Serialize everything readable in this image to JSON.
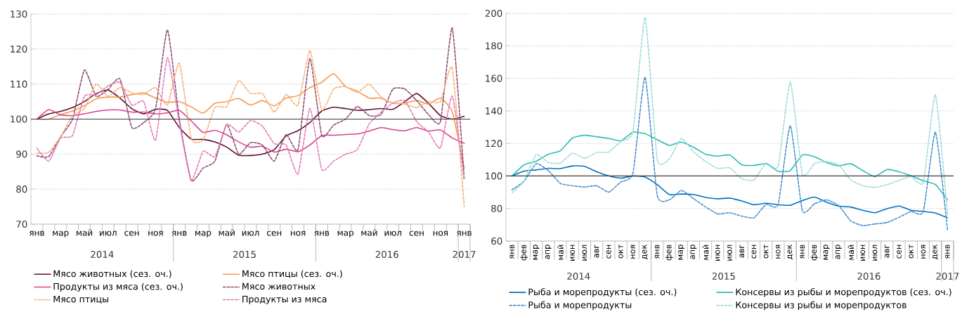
{
  "chart_data": [
    {
      "type": "line",
      "categories": [
        "янв",
        null,
        "мар",
        null,
        "май",
        null,
        "июл",
        null,
        "сен",
        null,
        "ноя",
        null,
        "янв",
        null,
        "мар",
        null,
        "май",
        null,
        "июл",
        null,
        "сен",
        null,
        "ноя",
        null,
        "янв",
        null,
        "мар",
        null,
        "май",
        null,
        "июл",
        null,
        "сен",
        null,
        "ноя",
        null,
        "янв"
      ],
      "series": [
        {
          "name": "Мясо животных (сез. оч.)",
          "color": "#5c1030",
          "line_style": "solid",
          "values": [
            100,
            101.5,
            102.2,
            103.3,
            105,
            107.3,
            108.3,
            106,
            103,
            101.5,
            102.8,
            102.5,
            97.6,
            94.3,
            94.2,
            93.5,
            92,
            89.7,
            89.6,
            90,
            91.3,
            95.2,
            96.7,
            99,
            102.3,
            103.4,
            103,
            102.5,
            102.7,
            103,
            102.8,
            105,
            107.3,
            104.5,
            101,
            100,
            100.8
          ]
        },
        {
          "name": "Мясо птицы (сез. оч.)",
          "color": "#f59a4f",
          "line_style": "solid",
          "values": [
            100,
            100,
            101.3,
            102.3,
            103.8,
            105.8,
            106.3,
            106.3,
            107,
            107.5,
            106,
            104.8,
            105,
            103.5,
            101.7,
            104.5,
            105,
            105.9,
            104,
            105.3,
            103.8,
            106,
            106.7,
            109,
            110.5,
            113,
            109.3,
            108,
            106,
            106,
            104.5,
            104.6,
            105.3,
            104.3,
            106,
            102,
            86
          ]
        },
        {
          "name": "Продукты из мяса (сез. оч.)",
          "color": "#d9408f",
          "line_style": "solid",
          "values": [
            100,
            102.7,
            101.2,
            101,
            101.5,
            102.2,
            102.6,
            102.6,
            102,
            102,
            101.5,
            101.8,
            102.5,
            99.5,
            96.2,
            96.8,
            95.5,
            93.5,
            92,
            92.2,
            90.6,
            91.4,
            90.7,
            92.6,
            95.3,
            95.4,
            95.6,
            95.8,
            96.6,
            97.6,
            97,
            96.7,
            97.6,
            96.6,
            96.9,
            94.6,
            93.1
          ]
        },
        {
          "name": "Мясо животных",
          "color": "#8e4d72",
          "line_style": "dashed",
          "values": [
            89.5,
            89.3,
            95,
            100,
            114,
            106.5,
            108.5,
            111.5,
            97.6,
            99,
            103,
            125.5,
            100,
            82.5,
            86,
            88,
            98.5,
            90,
            93.3,
            92.6,
            88,
            95.6,
            91.3,
            117.3,
            95.3,
            98.3,
            100,
            103.6,
            101,
            101.3,
            108.6,
            108.6,
            105.3,
            101.3,
            99.3,
            126,
            83
          ]
        },
        {
          "name": "Мясо птицы",
          "color": "#f7b27a",
          "line_style": "dashed",
          "values": [
            90.3,
            90.5,
            95,
            101,
            103,
            110,
            106.5,
            109,
            107.5,
            107,
            109,
            104,
            116,
            94.5,
            94,
            103.3,
            103.6,
            111,
            107.3,
            107.3,
            102,
            107,
            104,
            119.6,
            102.6,
            108.6,
            109.3,
            107.6,
            110,
            106.3,
            104.6,
            104.3,
            103.3,
            105,
            105,
            114.6,
            75
          ]
        },
        {
          "name": "Продукты из мяса",
          "color": "#e67ab8",
          "line_style": "dashed",
          "values": [
            91.7,
            88,
            94.6,
            95.3,
            106.5,
            107,
            109.5,
            110.5,
            104,
            105,
            94,
            117.5,
            99,
            82.5,
            90.8,
            89.3,
            98.5,
            96.3,
            99.6,
            98,
            93,
            92.6,
            84.3,
            103.1,
            85.6,
            88,
            90,
            91.3,
            98.6,
            102,
            104.6,
            105.3,
            99.3,
            96.3,
            91.8,
            106.6,
            82.6
          ]
        }
      ],
      "ylim": [
        70,
        130
      ],
      "yticks": [
        70,
        80,
        90,
        100,
        110,
        120,
        130
      ],
      "grid": "y",
      "legend": "bottom",
      "ref_lines": [
        {
          "axis": "y",
          "value": 100,
          "color": "#3a3a3a"
        }
      ],
      "annotations": [
        "2014",
        "2015",
        "2016",
        "2017"
      ]
    },
    {
      "type": "line",
      "categories": [
        "янв",
        "фев",
        "мар",
        "апр",
        "май",
        "июн",
        "июл",
        "авг",
        "сен",
        "окт",
        "ноя",
        "дек",
        "янв",
        "фев",
        "мар",
        "апр",
        "май",
        "июн",
        "июл",
        "авг",
        "сен",
        "окт",
        "ноя",
        "дек",
        "янв",
        "фев",
        "мар",
        "апр",
        "май",
        "июн",
        "июл",
        "авг",
        "сен",
        "окт",
        "ноя",
        "дек",
        "янв"
      ],
      "series": [
        {
          "name": "Рыба и морепродукты (сез. оч.)",
          "color": "#0070c0",
          "line_style": "solid",
          "values": [
            100,
            103,
            103.7,
            104.7,
            104.5,
            106.2,
            105.9,
            102.6,
            100.1,
            98.7,
            100,
            99.3,
            94.7,
            88.6,
            88.9,
            88.6,
            86.8,
            86,
            86.4,
            84.6,
            82.3,
            83.2,
            82.3,
            82,
            84.9,
            87,
            83.9,
            81.5,
            80.9,
            78.9,
            77.4,
            79.9,
            81.5,
            78.9,
            78.2,
            77.2,
            74.3
          ]
        },
        {
          "name": "Консервы из рыбы и морепродуктов (сез. оч.)",
          "color": "#2bbcb4",
          "line_style": "solid",
          "values": [
            100,
            106.9,
            109,
            113.4,
            115.5,
            123.4,
            125.1,
            124.1,
            123.1,
            121.6,
            127,
            126,
            122.3,
            118.8,
            120.8,
            117.7,
            113.4,
            112.2,
            112.9,
            106.9,
            106.5,
            107.6,
            102.9,
            103.3,
            112.9,
            111.9,
            108.3,
            106.2,
            107.6,
            103.3,
            99.6,
            104,
            102.6,
            100.1,
            97.1,
            94.7,
            85.3
          ]
        },
        {
          "name": "Рыба и морепродукты",
          "color": "#4a90d0",
          "line_style": "dashed",
          "values": [
            91.5,
            96.8,
            107.6,
            103.3,
            95.4,
            94,
            93.2,
            94,
            90.1,
            96.4,
            101.9,
            160.8,
            88.2,
            85.3,
            91.1,
            86.1,
            81,
            76.7,
            77.4,
            75.3,
            74.3,
            82.5,
            82.5,
            130.9,
            78.6,
            82.9,
            85.3,
            81.8,
            72.4,
            69.5,
            70.5,
            71.4,
            74.6,
            78.2,
            78.2,
            127,
            66.7
          ]
        },
        {
          "name": "Консервы из рыбы и морепродуктов",
          "color": "#9edcd8",
          "line_style": "dashed",
          "values": [
            89.7,
            96.8,
            113.1,
            108.3,
            107.9,
            114.1,
            110.8,
            114.5,
            114.8,
            121.3,
            127.7,
            197.4,
            110.5,
            110.5,
            123.1,
            114.8,
            109,
            104.7,
            105,
            98.3,
            97.6,
            107.9,
            106.2,
            157.9,
            101.1,
            107.6,
            108.8,
            106.9,
            97.6,
            94,
            93,
            94.7,
            97.3,
            99.7,
            96.1,
            150,
            76
          ]
        }
      ],
      "ylim": [
        60,
        200
      ],
      "yticks": [
        60,
        80,
        100,
        120,
        140,
        160,
        180,
        200
      ],
      "grid": "y",
      "legend": "bottom",
      "ref_lines": [
        {
          "axis": "y",
          "value": 100,
          "color": "#3a3a3a"
        }
      ],
      "annotations": [
        "2014",
        "2015",
        "2016",
        "2017"
      ]
    }
  ]
}
